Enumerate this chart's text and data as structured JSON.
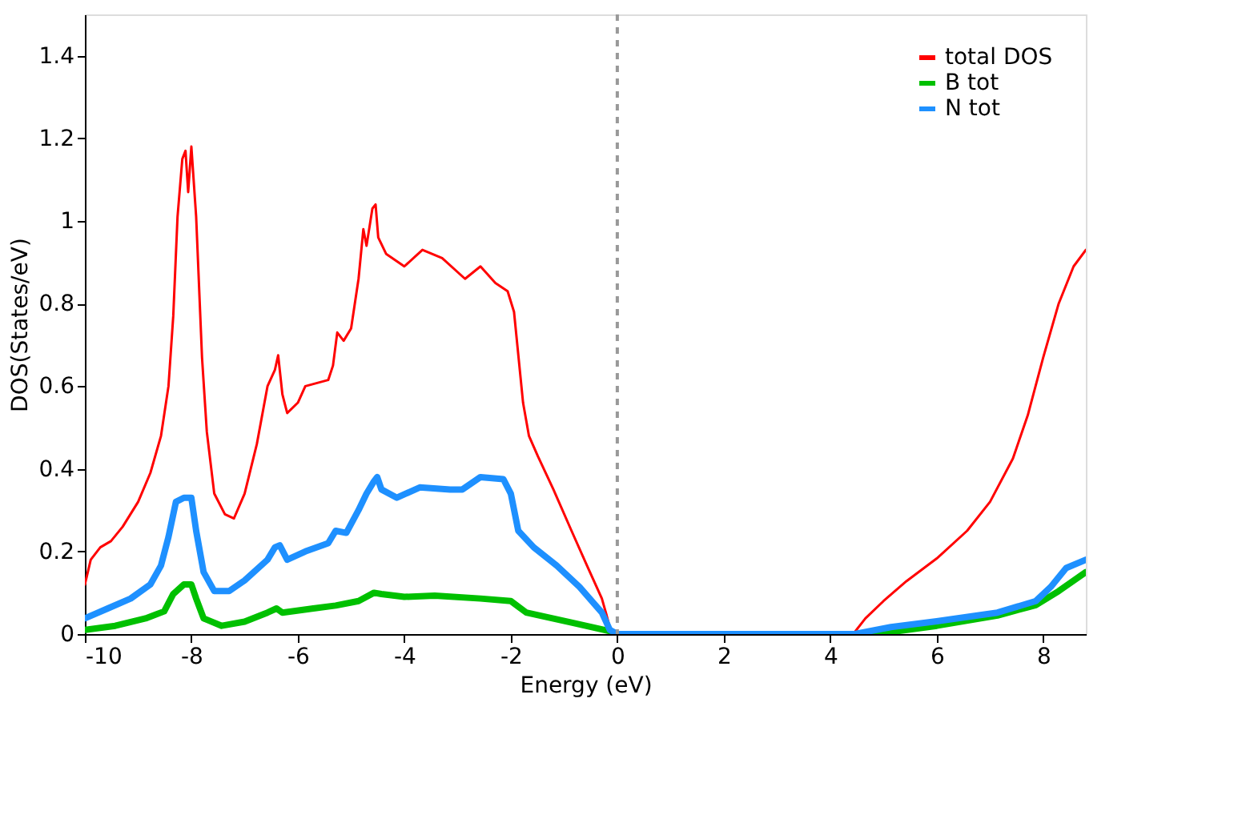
{
  "chart_data": {
    "type": "line",
    "xlabel": "Energy (eV)",
    "ylabel": "DOS(States/eV)",
    "xlim": [
      -10,
      8.8
    ],
    "ylim": [
      0,
      1.5
    ],
    "xticks": [
      -10,
      -8,
      -6,
      -4,
      -2,
      0,
      2,
      4,
      6,
      8
    ],
    "yticks": [
      0,
      0.2,
      0.4,
      0.6,
      0.8,
      1,
      1.2,
      1.4
    ],
    "grid": false,
    "legend": "top right",
    "marker": "none",
    "line_style": "solid",
    "ref_lines": [
      {
        "axis": "x",
        "value": 0,
        "color": "#999999",
        "line_style": "dashed"
      }
    ],
    "series": [
      {
        "name": "total DOS",
        "color": "#ff0000",
        "x": [
          -10,
          -9.89,
          -9.71,
          -9.51,
          -9.29,
          -9.0,
          -8.77,
          -8.57,
          -8.43,
          -8.34,
          -8.26,
          -8.17,
          -8.11,
          -8.06,
          -8.0,
          -7.91,
          -7.8,
          -7.71,
          -7.57,
          -7.37,
          -7.2,
          -7.0,
          -6.77,
          -6.57,
          -6.43,
          -6.37,
          -6.29,
          -6.2,
          -6.0,
          -5.86,
          -5.43,
          -5.34,
          -5.26,
          -5.14,
          -5.0,
          -4.86,
          -4.77,
          -4.71,
          -4.6,
          -4.54,
          -4.49,
          -4.34,
          -4.0,
          -3.66,
          -3.29,
          -2.86,
          -2.57,
          -2.29,
          -2.06,
          -1.94,
          -1.77,
          -1.66,
          -1.49,
          -1.2,
          -0.86,
          -0.57,
          -0.29,
          -0.2,
          -0.11,
          4.43,
          4.66,
          5.0,
          5.43,
          6.0,
          6.57,
          7.0,
          7.43,
          7.71,
          8.0,
          8.29,
          8.57,
          8.8
        ],
        "values": [
          0.12,
          0.18,
          0.21,
          0.225,
          0.26,
          0.32,
          0.39,
          0.48,
          0.6,
          0.77,
          1.01,
          1.15,
          1.17,
          1.07,
          1.18,
          1.01,
          0.67,
          0.49,
          0.34,
          0.29,
          0.28,
          0.34,
          0.46,
          0.6,
          0.64,
          0.675,
          0.58,
          0.535,
          0.56,
          0.6,
          0.615,
          0.65,
          0.73,
          0.71,
          0.74,
          0.86,
          0.98,
          0.94,
          1.03,
          1.04,
          0.96,
          0.92,
          0.89,
          0.93,
          0.91,
          0.86,
          0.89,
          0.85,
          0.83,
          0.78,
          0.56,
          0.48,
          0.43,
          0.35,
          0.25,
          0.166,
          0.086,
          0.045,
          0,
          0,
          0.038,
          0.08,
          0.128,
          0.183,
          0.25,
          0.32,
          0.425,
          0.53,
          0.67,
          0.8,
          0.89,
          0.93
        ]
      },
      {
        "name": "B tot",
        "color": "#00c000",
        "x": [
          -10,
          -9.43,
          -8.86,
          -8.51,
          -8.34,
          -8.14,
          -8.0,
          -7.91,
          -7.77,
          -7.43,
          -7.0,
          -6.57,
          -6.4,
          -6.29,
          -5.71,
          -5.29,
          -4.86,
          -4.57,
          -4.43,
          -4.0,
          -3.43,
          -2.57,
          -2.0,
          -1.71,
          -0.86,
          -0.14,
          0,
          4.86,
          6.0,
          7.14,
          7.86,
          8.29,
          8.8
        ],
        "values": [
          0.01,
          0.02,
          0.038,
          0.055,
          0.097,
          0.12,
          0.12,
          0.086,
          0.038,
          0.02,
          0.03,
          0.052,
          0.062,
          0.052,
          0.062,
          0.069,
          0.08,
          0.1,
          0.097,
          0.09,
          0.093,
          0.086,
          0.08,
          0.052,
          0.028,
          0.007,
          0,
          0,
          0.02,
          0.045,
          0.07,
          0.104,
          0.15
        ]
      },
      {
        "name": "N tot",
        "color": "#1e90ff",
        "x": [
          -10,
          -9.57,
          -9.14,
          -8.77,
          -8.57,
          -8.43,
          -8.29,
          -8.14,
          -8.0,
          -7.91,
          -7.77,
          -7.57,
          -7.29,
          -7.0,
          -6.57,
          -6.43,
          -6.34,
          -6.2,
          -5.86,
          -5.43,
          -5.29,
          -5.09,
          -4.86,
          -4.71,
          -4.57,
          -4.51,
          -4.43,
          -4.14,
          -3.71,
          -3.14,
          -2.91,
          -2.57,
          -2.14,
          -2.0,
          -1.86,
          -1.57,
          -1.14,
          -0.71,
          -0.29,
          -0.14,
          0,
          4.46,
          5.14,
          6.0,
          7.14,
          7.86,
          8.14,
          8.43,
          8.8
        ],
        "values": [
          0.038,
          0.062,
          0.086,
          0.12,
          0.166,
          0.235,
          0.32,
          0.33,
          0.33,
          0.25,
          0.15,
          0.104,
          0.104,
          0.13,
          0.18,
          0.21,
          0.215,
          0.18,
          0.2,
          0.22,
          0.25,
          0.245,
          0.3,
          0.34,
          0.37,
          0.38,
          0.35,
          0.33,
          0.355,
          0.35,
          0.35,
          0.38,
          0.375,
          0.34,
          0.25,
          0.21,
          0.166,
          0.114,
          0.052,
          0.01,
          0,
          0,
          0.017,
          0.031,
          0.052,
          0.08,
          0.114,
          0.16,
          0.18
        ]
      }
    ]
  }
}
